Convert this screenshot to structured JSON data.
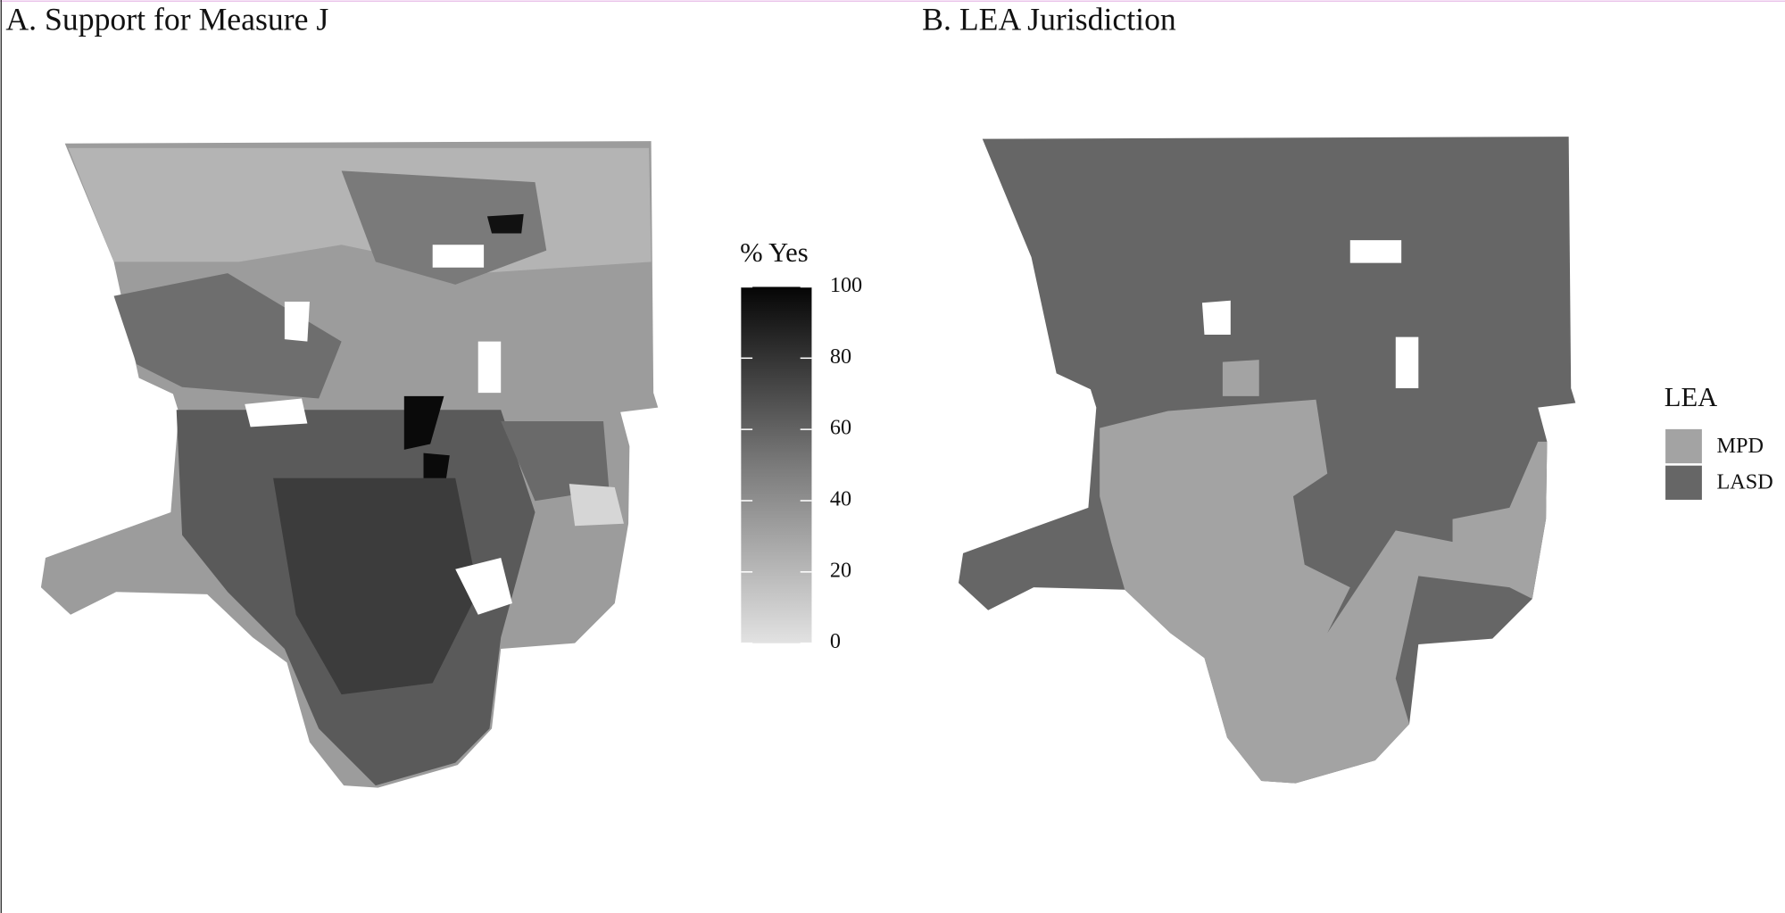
{
  "panels": [
    {
      "title": "A. Support for Measure J",
      "legend": {
        "title": "% Yes",
        "lim": [
          0,
          100
        ],
        "ticks": [
          0,
          20,
          40,
          60,
          80,
          100
        ]
      }
    },
    {
      "title": "B. LEA Jurisdiction",
      "legend": {
        "title": "LEA",
        "items": [
          {
            "label": "MPD",
            "color": "#a3a3a3"
          },
          {
            "label": "LASD",
            "color": "#666666"
          }
        ]
      }
    }
  ]
}
